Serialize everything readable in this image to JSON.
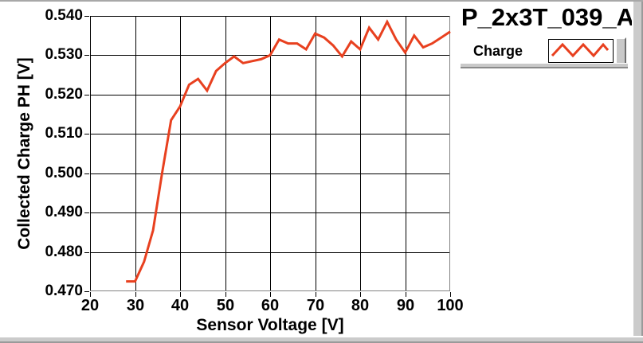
{
  "title": "P_2x3T_039_A",
  "legend": {
    "label": "Charge",
    "sample_icon": "red-zigzag-line"
  },
  "colors": {
    "line": "#e8401f",
    "grid": "#000000",
    "frame_dark": "#000000",
    "frame_shadow": "#828282",
    "bevel": "#cbcbcb",
    "background": "#ffffff"
  },
  "chart_data": {
    "type": "line",
    "title": "P_2x3T_039_A",
    "xlabel": "Sensor Voltage [V]",
    "ylabel": "Collected Charge PH [V]",
    "xlim": [
      20,
      100
    ],
    "ylim": [
      0.47,
      0.54
    ],
    "xticks": [
      20,
      30,
      40,
      50,
      60,
      70,
      80,
      90,
      100
    ],
    "yticks": [
      0.47,
      0.48,
      0.49,
      0.5,
      0.51,
      0.52,
      0.53,
      0.54
    ],
    "ytick_labels": [
      "0.470",
      "0.480",
      "0.490",
      "0.500",
      "0.510",
      "0.520",
      "0.530",
      "0.540"
    ],
    "xtick_labels": [
      "20",
      "30",
      "40",
      "50",
      "60",
      "70",
      "80",
      "90",
      "100"
    ],
    "grid": true,
    "legend_position": "top-right",
    "series": [
      {
        "name": "Charge",
        "x": [
          28,
          30,
          32,
          34,
          36,
          38,
          40,
          42,
          44,
          46,
          48,
          50,
          52,
          54,
          56,
          58,
          60,
          62,
          64,
          66,
          68,
          70,
          72,
          74,
          76,
          78,
          80,
          82,
          84,
          86,
          88,
          90,
          92,
          94,
          96,
          98,
          100
        ],
        "y": [
          0.4725,
          0.4725,
          0.4775,
          0.4855,
          0.5,
          0.5135,
          0.517,
          0.5225,
          0.524,
          0.521,
          0.526,
          0.528,
          0.5297,
          0.528,
          0.5285,
          0.529,
          0.53,
          0.534,
          0.533,
          0.533,
          0.5315,
          0.5355,
          0.5345,
          0.5325,
          0.5297,
          0.5335,
          0.5315,
          0.537,
          0.534,
          0.5385,
          0.534,
          0.5307,
          0.535,
          0.532,
          0.533,
          0.5345,
          0.536
        ]
      }
    ]
  }
}
